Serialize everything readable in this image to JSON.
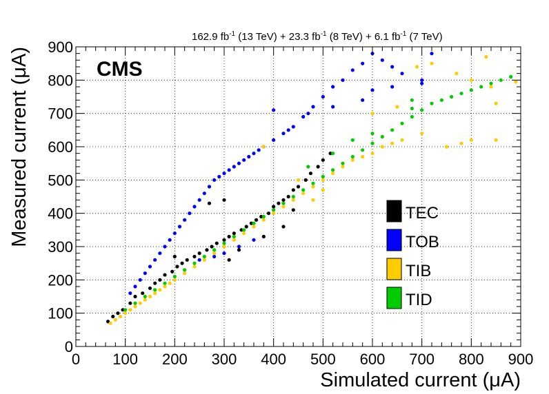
{
  "header": {
    "lumi_text": "162.9 fb⁻¹ (13 TeV) + 23.3 fb⁻¹ (8 TeV) + 6.1 fb⁻¹ (7 TeV)"
  },
  "chart_data": {
    "type": "scatter",
    "title": "CMS",
    "xlabel": "Simulated current (μA)",
    "ylabel": "Measured current (μA)",
    "xlim": [
      0,
      900
    ],
    "ylim": [
      0,
      900
    ],
    "xticks": [
      0,
      100,
      200,
      300,
      400,
      500,
      600,
      700,
      800,
      900
    ],
    "yticks": [
      0,
      100,
      200,
      300,
      400,
      500,
      600,
      700,
      800,
      900
    ],
    "grid": true,
    "legend_position": "right-center",
    "series": [
      {
        "name": "TEC",
        "color": "#000000",
        "points": [
          [
            65,
            75
          ],
          [
            75,
            90
          ],
          [
            85,
            100
          ],
          [
            95,
            110
          ],
          [
            110,
            130
          ],
          [
            120,
            150
          ],
          [
            135,
            160
          ],
          [
            150,
            175
          ],
          [
            160,
            190
          ],
          [
            170,
            200
          ],
          [
            180,
            215
          ],
          [
            195,
            225
          ],
          [
            205,
            240
          ],
          [
            215,
            250
          ],
          [
            225,
            260
          ],
          [
            240,
            270
          ],
          [
            250,
            280
          ],
          [
            265,
            290
          ],
          [
            275,
            300
          ],
          [
            285,
            310
          ],
          [
            300,
            320
          ],
          [
            310,
            330
          ],
          [
            320,
            340
          ],
          [
            335,
            350
          ],
          [
            345,
            360
          ],
          [
            355,
            370
          ],
          [
            365,
            380
          ],
          [
            375,
            390
          ],
          [
            390,
            400
          ],
          [
            400,
            420
          ],
          [
            410,
            430
          ],
          [
            420,
            440
          ],
          [
            430,
            450
          ],
          [
            440,
            470
          ],
          [
            450,
            480
          ],
          [
            465,
            500
          ],
          [
            475,
            520
          ],
          [
            490,
            540
          ],
          [
            500,
            560
          ],
          [
            515,
            580
          ],
          [
            300,
            440
          ],
          [
            270,
            430
          ],
          [
            200,
            270
          ],
          [
            380,
            330
          ],
          [
            420,
            360
          ],
          [
            440,
            410
          ],
          [
            310,
            260
          ],
          [
            330,
            290
          ]
        ]
      },
      {
        "name": "TOB",
        "color": "#0000ff",
        "points": [
          [
            110,
            160
          ],
          [
            120,
            180
          ],
          [
            130,
            200
          ],
          [
            140,
            220
          ],
          [
            150,
            240
          ],
          [
            160,
            260
          ],
          [
            170,
            280
          ],
          [
            180,
            300
          ],
          [
            190,
            320
          ],
          [
            200,
            340
          ],
          [
            210,
            360
          ],
          [
            220,
            380
          ],
          [
            230,
            400
          ],
          [
            240,
            420
          ],
          [
            250,
            440
          ],
          [
            260,
            460
          ],
          [
            270,
            480
          ],
          [
            280,
            500
          ],
          [
            290,
            510
          ],
          [
            300,
            520
          ],
          [
            310,
            530
          ],
          [
            320,
            540
          ],
          [
            330,
            550
          ],
          [
            340,
            560
          ],
          [
            350,
            570
          ],
          [
            360,
            580
          ],
          [
            370,
            590
          ],
          [
            380,
            600
          ],
          [
            400,
            620
          ],
          [
            420,
            640
          ],
          [
            440,
            660
          ],
          [
            460,
            690
          ],
          [
            480,
            720
          ],
          [
            500,
            750
          ],
          [
            520,
            780
          ],
          [
            540,
            800
          ],
          [
            560,
            830
          ],
          [
            580,
            850
          ],
          [
            600,
            880
          ],
          [
            620,
            860
          ],
          [
            640,
            840
          ],
          [
            660,
            820
          ],
          [
            700,
            800
          ],
          [
            720,
            880
          ],
          [
            400,
            710
          ],
          [
            430,
            650
          ],
          [
            470,
            700
          ],
          [
            520,
            720
          ],
          [
            580,
            740
          ],
          [
            600,
            770
          ],
          [
            640,
            780
          ],
          [
            700,
            790
          ],
          [
            250,
            260
          ],
          [
            280,
            270
          ],
          [
            300,
            280
          ],
          [
            330,
            300
          ],
          [
            360,
            320
          ]
        ]
      },
      {
        "name": "TIB",
        "color": "#ffcc00",
        "points": [
          [
            70,
            70
          ],
          [
            80,
            80
          ],
          [
            90,
            90
          ],
          [
            100,
            100
          ],
          [
            110,
            110
          ],
          [
            120,
            120
          ],
          [
            130,
            130
          ],
          [
            140,
            140
          ],
          [
            150,
            150
          ],
          [
            160,
            160
          ],
          [
            170,
            170
          ],
          [
            180,
            180
          ],
          [
            190,
            190
          ],
          [
            200,
            200
          ],
          [
            220,
            220
          ],
          [
            240,
            240
          ],
          [
            260,
            260
          ],
          [
            280,
            280
          ],
          [
            300,
            300
          ],
          [
            320,
            320
          ],
          [
            340,
            340
          ],
          [
            360,
            360
          ],
          [
            380,
            380
          ],
          [
            400,
            400
          ],
          [
            420,
            420
          ],
          [
            440,
            440
          ],
          [
            460,
            460
          ],
          [
            480,
            480
          ],
          [
            500,
            500
          ],
          [
            520,
            520
          ],
          [
            540,
            540
          ],
          [
            560,
            560
          ],
          [
            580,
            570
          ],
          [
            600,
            580
          ],
          [
            620,
            600
          ],
          [
            640,
            610
          ],
          [
            660,
            620
          ],
          [
            700,
            640
          ],
          [
            750,
            600
          ],
          [
            780,
            610
          ],
          [
            800,
            620
          ],
          [
            850,
            620
          ],
          [
            600,
            700
          ],
          [
            650,
            720
          ],
          [
            690,
            840
          ],
          [
            720,
            850
          ],
          [
            770,
            820
          ],
          [
            800,
            800
          ],
          [
            830,
            870
          ],
          [
            840,
            780
          ],
          [
            850,
            730
          ],
          [
            890,
            795
          ],
          [
            380,
            600
          ],
          [
            450,
            500
          ],
          [
            500,
            470
          ],
          [
            480,
            440
          ]
        ]
      },
      {
        "name": "TID",
        "color": "#00cc00",
        "points": [
          [
            100,
            110
          ],
          [
            120,
            130
          ],
          [
            140,
            150
          ],
          [
            160,
            170
          ],
          [
            180,
            190
          ],
          [
            200,
            210
          ],
          [
            220,
            230
          ],
          [
            240,
            250
          ],
          [
            260,
            270
          ],
          [
            280,
            290
          ],
          [
            300,
            310
          ],
          [
            320,
            330
          ],
          [
            340,
            350
          ],
          [
            360,
            370
          ],
          [
            380,
            390
          ],
          [
            400,
            410
          ],
          [
            420,
            430
          ],
          [
            440,
            450
          ],
          [
            460,
            470
          ],
          [
            480,
            490
          ],
          [
            500,
            510
          ],
          [
            520,
            530
          ],
          [
            540,
            550
          ],
          [
            560,
            570
          ],
          [
            580,
            590
          ],
          [
            600,
            610
          ],
          [
            620,
            630
          ],
          [
            640,
            650
          ],
          [
            660,
            670
          ],
          [
            680,
            690
          ],
          [
            700,
            710
          ],
          [
            720,
            730
          ],
          [
            740,
            740
          ],
          [
            760,
            750
          ],
          [
            780,
            760
          ],
          [
            800,
            770
          ],
          [
            820,
            780
          ],
          [
            840,
            790
          ],
          [
            860,
            800
          ],
          [
            880,
            810
          ],
          [
            680,
            740
          ],
          [
            680,
            715
          ],
          [
            470,
            540
          ],
          [
            520,
            580
          ],
          [
            560,
            620
          ],
          [
            600,
            640
          ]
        ]
      }
    ]
  }
}
